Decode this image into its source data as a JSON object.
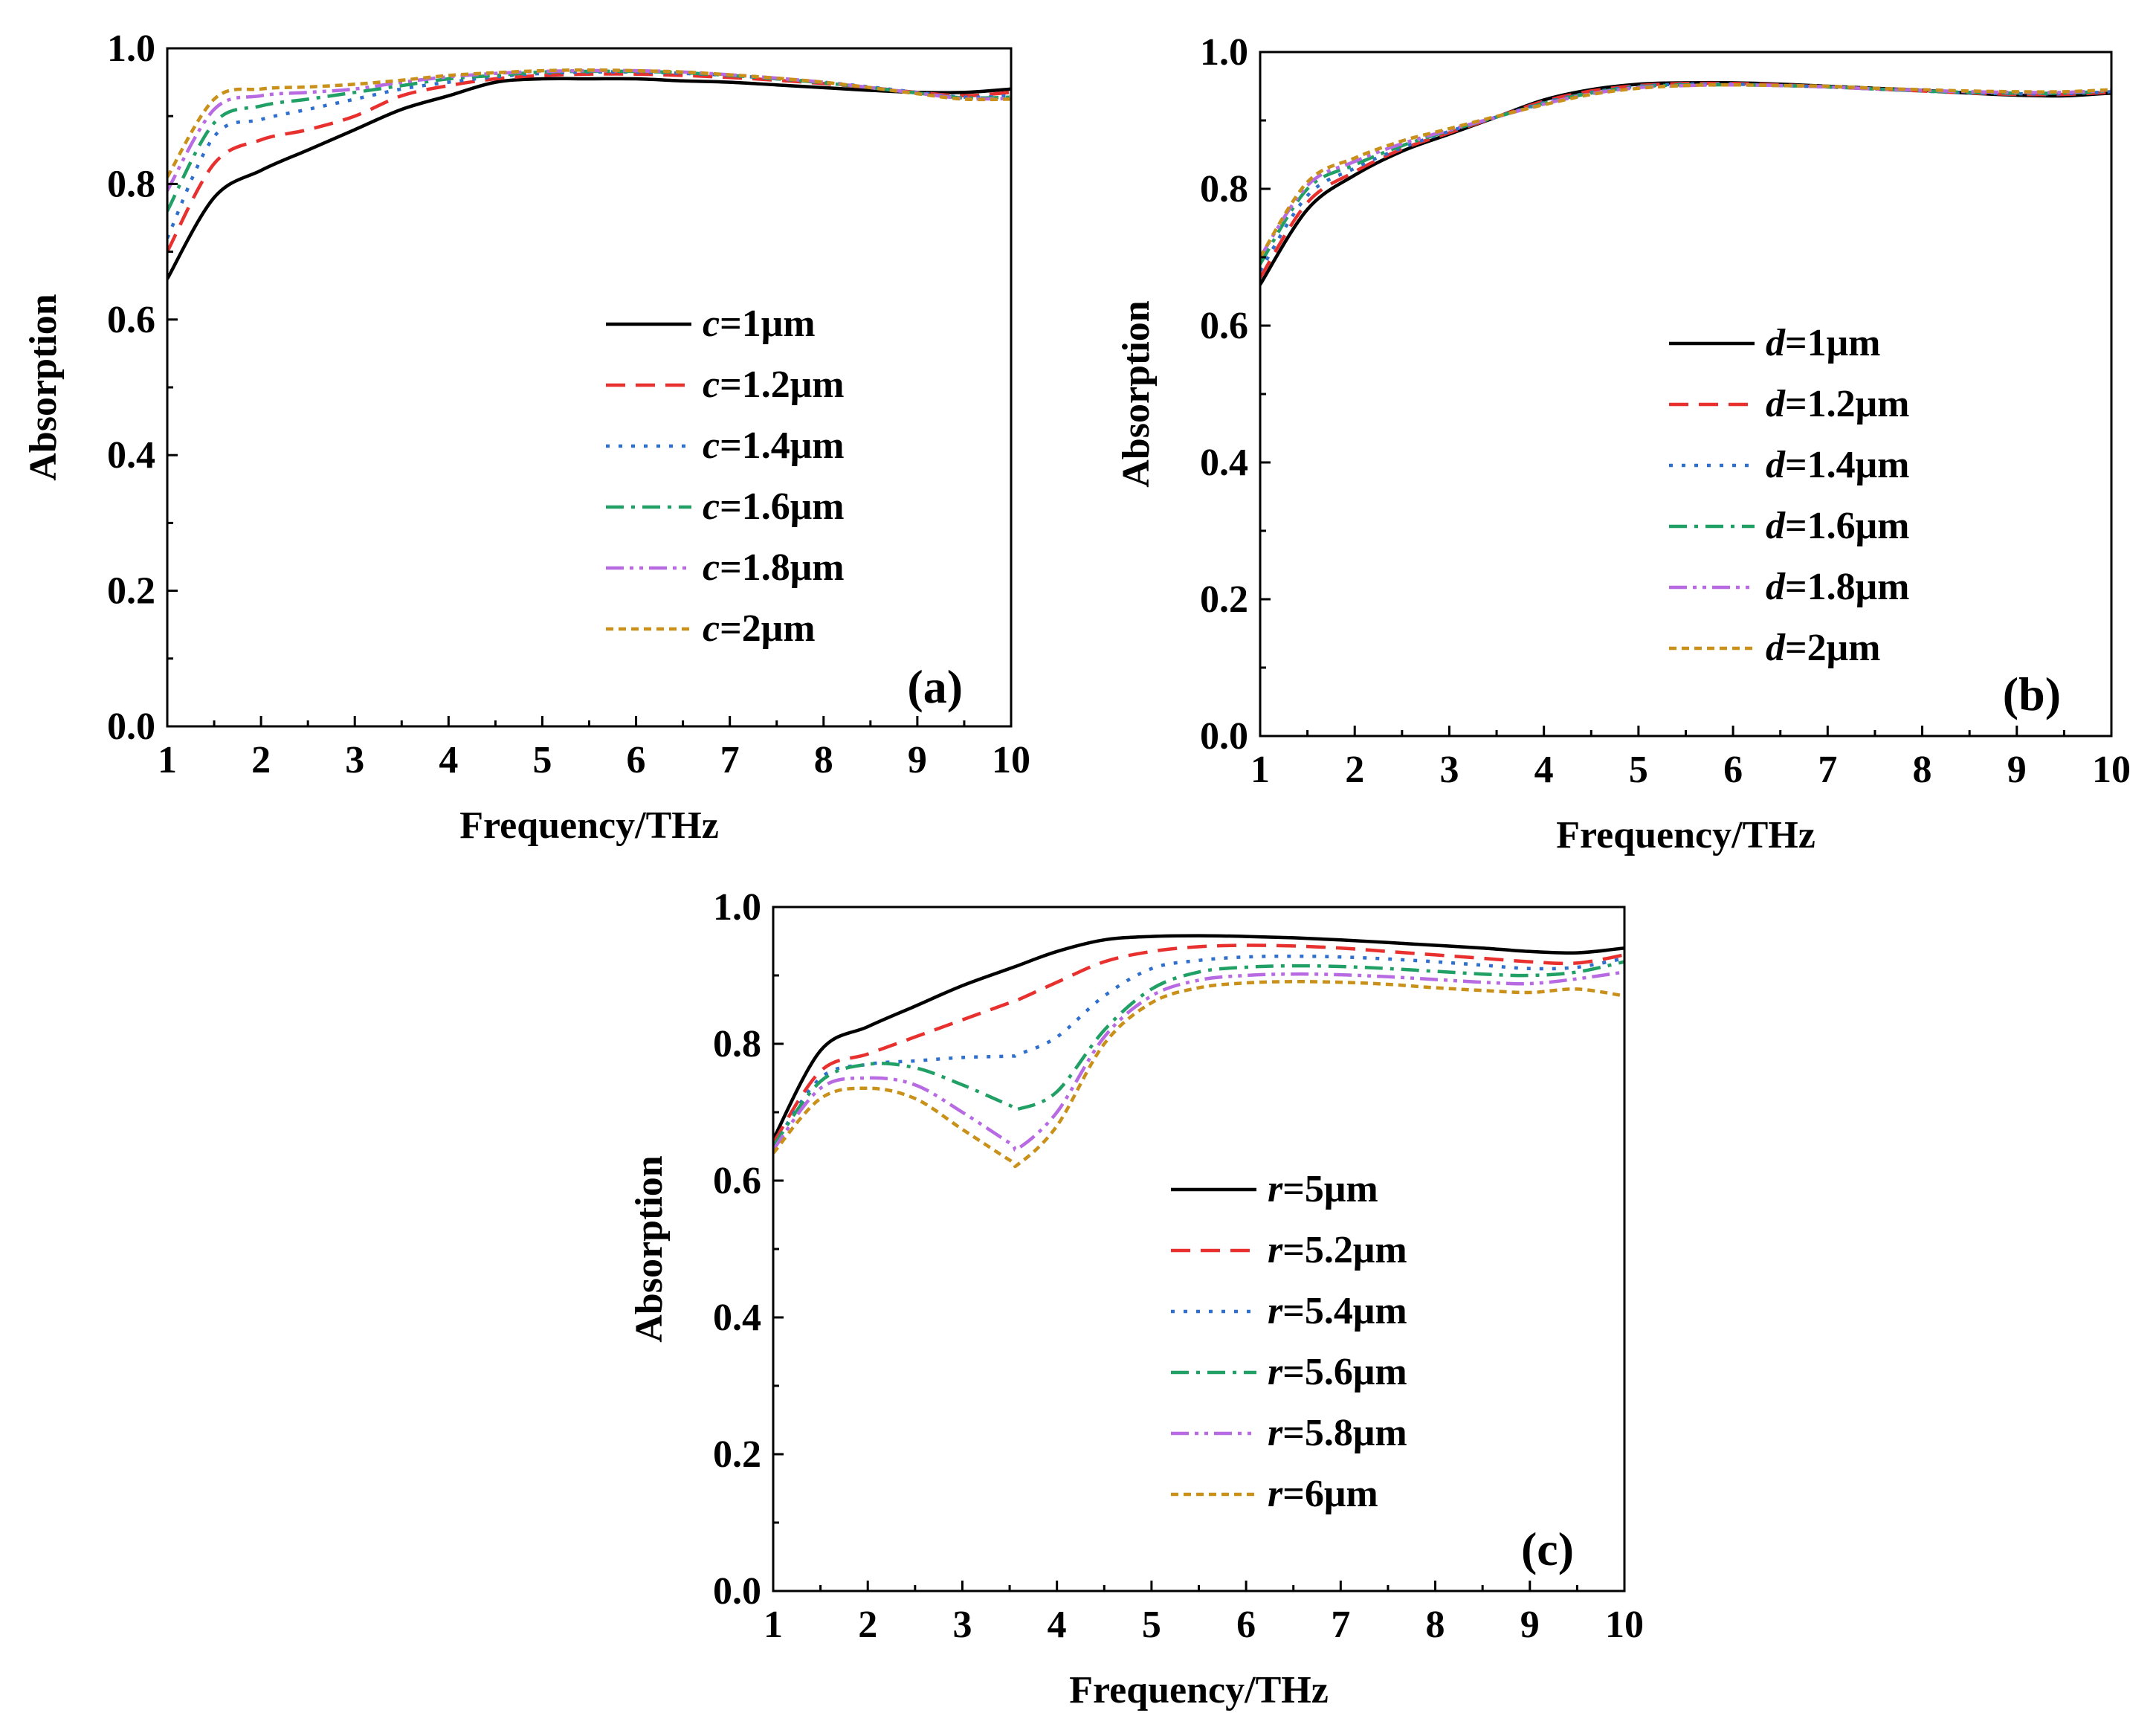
{
  "colors": {
    "series": [
      "#000000",
      "#e8302f",
      "#2f6fce",
      "#21a066",
      "#b86ae3",
      "#c9901a"
    ]
  },
  "chart_data": [
    {
      "panel_tag": "(a)",
      "type": "line",
      "xlabel": "Frequency/THz",
      "ylabel": "Absorption",
      "xlim": [
        1,
        10
      ],
      "ylim": [
        0,
        1.0
      ],
      "x_ticks": [
        "1",
        "2",
        "3",
        "4",
        "5",
        "6",
        "7",
        "8",
        "9",
        "10"
      ],
      "y_ticks": [
        "0.0",
        "0.2",
        "0.4",
        "0.6",
        "0.8",
        "1.0"
      ],
      "legend_position": "center-right",
      "x": [
        1,
        1.5,
        2,
        2.5,
        3,
        3.5,
        4,
        4.5,
        5,
        5.5,
        6,
        6.5,
        7,
        7.5,
        8,
        8.5,
        9,
        9.5,
        10
      ],
      "series": [
        {
          "name": "c=1μm",
          "var": "c",
          "rest": "=1μm",
          "style": "solid",
          "values": [
            0.66,
            0.78,
            0.82,
            0.85,
            0.88,
            0.91,
            0.93,
            0.95,
            0.955,
            0.955,
            0.955,
            0.952,
            0.95,
            0.946,
            0.942,
            0.938,
            0.935,
            0.935,
            0.94
          ]
        },
        {
          "name": "c=1.2μm",
          "var": "c",
          "rest": "=1.2μm",
          "style": "dashed",
          "values": [
            0.7,
            0.83,
            0.865,
            0.88,
            0.9,
            0.93,
            0.945,
            0.955,
            0.96,
            0.962,
            0.962,
            0.96,
            0.957,
            0.953,
            0.948,
            0.942,
            0.935,
            0.93,
            0.935
          ]
        },
        {
          "name": "c=1.4μm",
          "var": "c",
          "rest": "=1.4μm",
          "style": "dotted",
          "values": [
            0.72,
            0.87,
            0.895,
            0.91,
            0.925,
            0.94,
            0.95,
            0.958,
            0.963,
            0.965,
            0.965,
            0.963,
            0.96,
            0.955,
            0.95,
            0.943,
            0.935,
            0.928,
            0.93
          ]
        },
        {
          "name": "c=1.6μm",
          "var": "c",
          "rest": "=1.6μm",
          "style": "dashdot",
          "values": [
            0.76,
            0.89,
            0.915,
            0.925,
            0.935,
            0.945,
            0.955,
            0.96,
            0.965,
            0.966,
            0.966,
            0.964,
            0.96,
            0.955,
            0.949,
            0.942,
            0.934,
            0.927,
            0.928
          ]
        },
        {
          "name": "c=1.8μm",
          "var": "c",
          "rest": "=1.8μm",
          "style": "dashdotdot",
          "values": [
            0.79,
            0.91,
            0.93,
            0.935,
            0.94,
            0.95,
            0.958,
            0.963,
            0.966,
            0.967,
            0.967,
            0.965,
            0.961,
            0.956,
            0.95,
            0.942,
            0.934,
            0.926,
            0.926
          ]
        },
        {
          "name": "c=2μm",
          "var": "c",
          "rest": "=2μm",
          "style": "shortdash",
          "values": [
            0.81,
            0.925,
            0.94,
            0.943,
            0.947,
            0.953,
            0.96,
            0.964,
            0.967,
            0.968,
            0.967,
            0.965,
            0.961,
            0.956,
            0.95,
            0.942,
            0.933,
            0.925,
            0.925
          ]
        }
      ]
    },
    {
      "panel_tag": "(b)",
      "type": "line",
      "xlabel": "Frequency/THz",
      "ylabel": "Absorption",
      "xlim": [
        1,
        10
      ],
      "ylim": [
        0,
        1.0
      ],
      "x_ticks": [
        "1",
        "2",
        "3",
        "4",
        "5",
        "6",
        "7",
        "8",
        "9",
        "10"
      ],
      "y_ticks": [
        "0.0",
        "0.2",
        "0.4",
        "0.6",
        "0.8",
        "1.0"
      ],
      "legend_position": "center-right",
      "x": [
        1,
        1.5,
        2,
        2.5,
        3,
        3.5,
        4,
        4.5,
        5,
        5.5,
        6,
        6.5,
        7,
        7.5,
        8,
        8.5,
        9,
        9.5,
        10
      ],
      "series": [
        {
          "name": "d=1μm",
          "var": "d",
          "rest": "=1μm",
          "style": "solid",
          "values": [
            0.66,
            0.77,
            0.82,
            0.855,
            0.88,
            0.905,
            0.93,
            0.945,
            0.953,
            0.955,
            0.955,
            0.953,
            0.95,
            0.947,
            0.944,
            0.94,
            0.937,
            0.936,
            0.94
          ]
        },
        {
          "name": "d=1.2μm",
          "var": "d",
          "rest": "=1.2μm",
          "style": "dashed",
          "values": [
            0.67,
            0.78,
            0.825,
            0.858,
            0.882,
            0.905,
            0.928,
            0.943,
            0.951,
            0.954,
            0.954,
            0.952,
            0.949,
            0.946,
            0.943,
            0.94,
            0.938,
            0.938,
            0.941
          ]
        },
        {
          "name": "d=1.4μm",
          "var": "d",
          "rest": "=1.4μm",
          "style": "dotted",
          "values": [
            0.68,
            0.79,
            0.83,
            0.86,
            0.884,
            0.905,
            0.926,
            0.941,
            0.95,
            0.953,
            0.953,
            0.951,
            0.949,
            0.946,
            0.943,
            0.94,
            0.939,
            0.939,
            0.942
          ]
        },
        {
          "name": "d=1.6μm",
          "var": "d",
          "rest": "=1.6μm",
          "style": "dashdot",
          "values": [
            0.69,
            0.8,
            0.835,
            0.863,
            0.885,
            0.905,
            0.925,
            0.94,
            0.949,
            0.952,
            0.952,
            0.951,
            0.949,
            0.946,
            0.943,
            0.941,
            0.94,
            0.94,
            0.943
          ]
        },
        {
          "name": "d=1.8μm",
          "var": "d",
          "rest": "=1.8μm",
          "style": "dashdotdot",
          "values": [
            0.7,
            0.805,
            0.84,
            0.866,
            0.886,
            0.905,
            0.924,
            0.939,
            0.948,
            0.951,
            0.952,
            0.951,
            0.949,
            0.946,
            0.944,
            0.942,
            0.941,
            0.941,
            0.944
          ]
        },
        {
          "name": "d=2μm",
          "var": "d",
          "rest": "=2μm",
          "style": "shortdash",
          "values": [
            0.7,
            0.81,
            0.845,
            0.87,
            0.888,
            0.906,
            0.923,
            0.938,
            0.947,
            0.951,
            0.952,
            0.951,
            0.95,
            0.947,
            0.945,
            0.943,
            0.942,
            0.942,
            0.945
          ]
        }
      ]
    },
    {
      "panel_tag": "(c)",
      "type": "line",
      "xlabel": "Frequency/THz",
      "ylabel": "Absorption",
      "xlim": [
        1,
        10
      ],
      "ylim": [
        0,
        1.0
      ],
      "x_ticks": [
        "1",
        "2",
        "3",
        "4",
        "5",
        "6",
        "7",
        "8",
        "9",
        "10"
      ],
      "y_ticks": [
        "0.0",
        "0.2",
        "0.4",
        "0.6",
        "0.8",
        "1.0"
      ],
      "legend_position": "center-right",
      "x": [
        1,
        1.5,
        2,
        2.5,
        3,
        3.5,
        3.6,
        4,
        4.5,
        5,
        5.5,
        6,
        6.5,
        7,
        7.5,
        8,
        8.5,
        9,
        9.5,
        10
      ],
      "series": [
        {
          "name": "r=5μm",
          "var": "r",
          "rest": "=5μm",
          "style": "solid",
          "values": [
            0.66,
            0.79,
            0.825,
            0.855,
            0.885,
            0.91,
            0.915,
            0.935,
            0.952,
            0.957,
            0.958,
            0.957,
            0.955,
            0.952,
            0.948,
            0.944,
            0.94,
            0.935,
            0.933,
            0.94
          ]
        },
        {
          "name": "r=5.2μm",
          "var": "r",
          "rest": "=5.2μm",
          "style": "dashed",
          "values": [
            0.655,
            0.76,
            0.785,
            0.81,
            0.835,
            0.86,
            0.865,
            0.89,
            0.92,
            0.935,
            0.942,
            0.944,
            0.943,
            0.94,
            0.935,
            0.93,
            0.925,
            0.92,
            0.918,
            0.93
          ]
        },
        {
          "name": "r=5.4μm",
          "var": "r",
          "rest": "=5.4μm",
          "style": "dotted",
          "values": [
            0.65,
            0.75,
            0.77,
            0.775,
            0.78,
            0.782,
            0.785,
            0.81,
            0.87,
            0.91,
            0.922,
            0.927,
            0.928,
            0.927,
            0.924,
            0.92,
            0.915,
            0.91,
            0.912,
            0.925
          ]
        },
        {
          "name": "r=5.6μm",
          "var": "r",
          "rest": "=5.6μm",
          "style": "dashdot",
          "values": [
            0.65,
            0.745,
            0.77,
            0.765,
            0.74,
            0.71,
            0.705,
            0.73,
            0.82,
            0.88,
            0.905,
            0.912,
            0.914,
            0.913,
            0.91,
            0.906,
            0.902,
            0.9,
            0.905,
            0.92
          ]
        },
        {
          "name": "r=5.8μm",
          "var": "r",
          "rest": "=5.8μm",
          "style": "dashdotdot",
          "values": [
            0.645,
            0.735,
            0.75,
            0.74,
            0.7,
            0.655,
            0.648,
            0.7,
            0.81,
            0.87,
            0.893,
            0.9,
            0.902,
            0.901,
            0.898,
            0.894,
            0.89,
            0.888,
            0.895,
            0.905
          ]
        },
        {
          "name": "r=6μm",
          "var": "r",
          "rest": "=6μm",
          "style": "shortdash",
          "values": [
            0.64,
            0.72,
            0.735,
            0.72,
            0.675,
            0.63,
            0.625,
            0.68,
            0.8,
            0.86,
            0.882,
            0.889,
            0.891,
            0.89,
            0.887,
            0.882,
            0.878,
            0.875,
            0.88,
            0.87
          ]
        }
      ]
    }
  ]
}
